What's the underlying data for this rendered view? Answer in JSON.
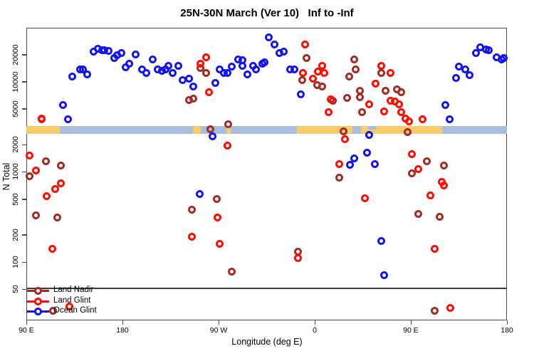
{
  "chart_data": {
    "type": "scatter",
    "title": "25N-30N March (Ver 10)   Inf to -Inf",
    "xlabel": "Longitude (deg E)",
    "ylabel": "N Total",
    "y_scale": "log",
    "ylim": [
      28,
      38000
    ],
    "y_ticks": [
      50,
      100,
      200,
      500,
      1000,
      2000,
      5000,
      10000,
      20000
    ],
    "x_axis_deg_range": [
      90,
      540
    ],
    "x_ticks": [
      {
        "deg": 90,
        "label": "90 E"
      },
      {
        "deg": 180,
        "label": "180"
      },
      {
        "deg": 270,
        "label": "90 W"
      },
      {
        "deg": 360,
        "label": "0"
      },
      {
        "deg": 450,
        "label": "90 E"
      },
      {
        "deg": 540,
        "label": "180"
      }
    ],
    "grid": false,
    "legend_position": "bottom-left",
    "reference_line_n": 50,
    "surface_band": {
      "n_top": 3250,
      "n_bottom": 2650,
      "land_color": "#F8CC69",
      "ocean_color": "#A8BEDC",
      "segments": [
        {
          "from": 90,
          "to": 121,
          "surface": "land"
        },
        {
          "from": 121,
          "to": 246,
          "surface": "ocean"
        },
        {
          "from": 246,
          "to": 253,
          "surface": "land"
        },
        {
          "from": 253,
          "to": 277,
          "surface": "ocean"
        },
        {
          "from": 277,
          "to": 281,
          "surface": "land"
        },
        {
          "from": 281,
          "to": 343,
          "surface": "ocean"
        },
        {
          "from": 343,
          "to": 395,
          "surface": "land"
        },
        {
          "from": 395,
          "to": 403,
          "surface": "ocean"
        },
        {
          "from": 403,
          "to": 479,
          "surface": "land"
        },
        {
          "from": 410,
          "to": 418,
          "surface": "ocean",
          "half": "top"
        },
        {
          "from": 479,
          "to": 540,
          "surface": "ocean"
        }
      ]
    },
    "series": [
      {
        "name": "Land Nadir",
        "color": "#A32C24",
        "points": [
          [
            104,
            3800
          ],
          [
            108,
            1300
          ],
          [
            122,
            1170
          ],
          [
            93,
            900
          ],
          [
            99,
            330
          ],
          [
            119,
            310
          ],
          [
            115,
            29
          ],
          [
            246,
            6440
          ],
          [
            242,
            6300
          ],
          [
            253,
            14100
          ],
          [
            258,
            12600
          ],
          [
            262,
            2950
          ],
          [
            279,
            3350
          ],
          [
            268,
            500
          ],
          [
            245,
            380
          ],
          [
            282,
            78
          ],
          [
            344,
            130
          ],
          [
            348,
            10500
          ],
          [
            352,
            18200
          ],
          [
            362,
            9100
          ],
          [
            367,
            8800
          ],
          [
            377,
            6200
          ],
          [
            383,
            860
          ],
          [
            387,
            2790
          ],
          [
            390,
            6560
          ],
          [
            392,
            11500
          ],
          [
            397,
            17800
          ],
          [
            398,
            13800
          ],
          [
            402,
            8000
          ],
          [
            402,
            6680
          ],
          [
            404,
            4560
          ],
          [
            422,
            12600
          ],
          [
            426,
            8000
          ],
          [
            437,
            8300
          ],
          [
            441,
            7600
          ],
          [
            447,
            2740
          ],
          [
            451,
            960
          ],
          [
            457,
            340
          ],
          [
            465,
            1300
          ],
          [
            472,
            29
          ],
          [
            477,
            315
          ],
          [
            481,
            1170
          ]
        ]
      },
      {
        "name": "Land Glint",
        "color": "#FF0D00",
        "points": [
          [
            104,
            3900
          ],
          [
            93,
            1530
          ],
          [
            99,
            1040
          ],
          [
            117,
            640
          ],
          [
            122,
            750
          ],
          [
            109,
            540
          ],
          [
            114,
            140
          ],
          [
            130,
            32
          ],
          [
            245,
            190
          ],
          [
            253,
            15700
          ],
          [
            258,
            18800
          ],
          [
            261,
            7600
          ],
          [
            269,
            310
          ],
          [
            271,
            160
          ],
          [
            278,
            1940
          ],
          [
            344,
            110
          ],
          [
            349,
            12400
          ],
          [
            351,
            26100
          ],
          [
            358,
            10900
          ],
          [
            363,
            12900
          ],
          [
            367,
            14900
          ],
          [
            369,
            12400
          ],
          [
            373,
            4640
          ],
          [
            375,
            6330
          ],
          [
            383,
            1210
          ],
          [
            388,
            2290
          ],
          [
            407,
            510
          ],
          [
            411,
            5570
          ],
          [
            417,
            9600
          ],
          [
            422,
            15100
          ],
          [
            425,
            4700
          ],
          [
            431,
            12600
          ],
          [
            431,
            6100
          ],
          [
            435,
            6030
          ],
          [
            439,
            5570
          ],
          [
            441,
            4640
          ],
          [
            445,
            3870
          ],
          [
            448,
            3660
          ],
          [
            451,
            1560
          ],
          [
            457,
            1080
          ],
          [
            461,
            3800
          ],
          [
            468,
            550
          ],
          [
            472,
            140
          ],
          [
            479,
            780
          ],
          [
            481,
            710
          ],
          [
            487,
            31
          ]
        ]
      },
      {
        "name": "Ocean Glint",
        "color": "#1414F0",
        "points": [
          [
            124,
            5500
          ],
          [
            129,
            3800
          ],
          [
            133,
            11500
          ],
          [
            140,
            13800
          ],
          [
            143,
            13800
          ],
          [
            147,
            12000
          ],
          [
            153,
            21400
          ],
          [
            157,
            23400
          ],
          [
            161,
            22200
          ],
          [
            163,
            22400
          ],
          [
            167,
            22000
          ],
          [
            172,
            18200
          ],
          [
            175,
            19700
          ],
          [
            179,
            20800
          ],
          [
            183,
            14400
          ],
          [
            186,
            15700
          ],
          [
            192,
            19900
          ],
          [
            198,
            13800
          ],
          [
            202,
            12400
          ],
          [
            208,
            17800
          ],
          [
            213,
            13800
          ],
          [
            217,
            13100
          ],
          [
            220,
            13600
          ],
          [
            223,
            14900
          ],
          [
            227,
            12600
          ],
          [
            232,
            15100
          ],
          [
            236,
            10500
          ],
          [
            242,
            10800
          ],
          [
            246,
            8800
          ],
          [
            252,
            570
          ],
          [
            264,
            2500
          ],
          [
            267,
            9700
          ],
          [
            271,
            13600
          ],
          [
            275,
            12400
          ],
          [
            278,
            12400
          ],
          [
            282,
            14600
          ],
          [
            288,
            17700
          ],
          [
            292,
            17300
          ],
          [
            292,
            15100
          ],
          [
            297,
            12000
          ],
          [
            302,
            15100
          ],
          [
            305,
            13800
          ],
          [
            311,
            15700
          ],
          [
            313,
            16300
          ],
          [
            317,
            30800
          ],
          [
            322,
            25700
          ],
          [
            327,
            21000
          ],
          [
            331,
            21400
          ],
          [
            337,
            13800
          ],
          [
            341,
            13800
          ],
          [
            347,
            7200
          ],
          [
            393,
            1190
          ],
          [
            397,
            1400
          ],
          [
            409,
            1620
          ],
          [
            411,
            2550
          ],
          [
            416,
            1230
          ],
          [
            422,
            170
          ],
          [
            425,
            72
          ],
          [
            482,
            5500
          ],
          [
            486,
            3800
          ],
          [
            492,
            11100
          ],
          [
            495,
            14600
          ],
          [
            501,
            13800
          ],
          [
            505,
            11800
          ],
          [
            511,
            21000
          ],
          [
            515,
            23900
          ],
          [
            520,
            22600
          ],
          [
            523,
            22400
          ],
          [
            530,
            18500
          ],
          [
            535,
            17800
          ],
          [
            537,
            18300
          ]
        ]
      }
    ]
  }
}
